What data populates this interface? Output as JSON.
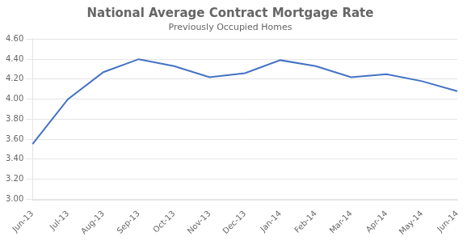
{
  "chart_data": {
    "type": "line",
    "title": "National Average Contract Mortgage Rate",
    "subtitle": "Previously Occupied Homes",
    "categories": [
      "Jun-13",
      "Jul-13",
      "Aug-13",
      "Sep-13",
      "Oct-13",
      "Nov-13",
      "Dec-13",
      "Jan-14",
      "Feb-14",
      "Mar-14",
      "Apr-14",
      "May-14",
      "Jun-14"
    ],
    "values": [
      3.55,
      4.0,
      4.27,
      4.4,
      4.33,
      4.22,
      4.26,
      4.39,
      4.33,
      4.22,
      4.25,
      4.18,
      4.08
    ],
    "color": "#4472C4",
    "ylim": [
      2.99,
      4.61
    ],
    "yticks": [
      {
        "value": 3.0,
        "label": "3.00"
      },
      {
        "value": 3.2,
        "label": "3.20"
      },
      {
        "value": 3.4,
        "label": "3.40"
      },
      {
        "value": 3.6,
        "label": "3.60"
      },
      {
        "value": 3.8,
        "label": "3.80"
      },
      {
        "value": 4.0,
        "label": "4.00"
      },
      {
        "value": 4.2,
        "label": "4.20"
      },
      {
        "value": 4.4,
        "label": "4.40"
      },
      {
        "value": 4.6,
        "label": "4.60"
      }
    ],
    "grid": true
  }
}
